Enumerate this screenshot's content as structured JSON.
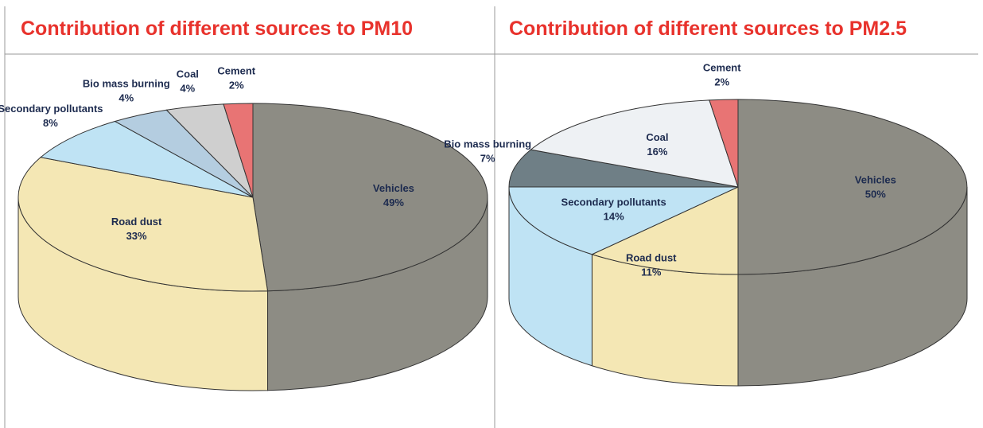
{
  "chart_data": [
    {
      "type": "pie",
      "title": "Contribution of different sources to PM10",
      "categories": [
        "Vehicles",
        "Road dust",
        "Secondary pollutants",
        "Bio mass burning",
        "Coal",
        "Cement"
      ],
      "values": [
        49,
        33,
        8,
        4,
        4,
        2
      ],
      "value_labels": [
        "49%",
        "33%",
        "8%",
        "4%",
        "4%",
        "2%"
      ],
      "colors": [
        "#8d8c84",
        "#f4e7b4",
        "#bfe3f4",
        "#b4cde0",
        "#cfcfcf",
        "#e87474"
      ]
    },
    {
      "type": "pie",
      "title": "Contribution of different sources to PM2.5",
      "categories": [
        "Vehicles",
        "Road dust",
        "Secondary pollutants",
        "Bio mass burning",
        "Coal",
        "Cement"
      ],
      "values": [
        50,
        11,
        14,
        7,
        16,
        2
      ],
      "value_labels": [
        "50%",
        "11%",
        "14%",
        "7%",
        "16%",
        "2%"
      ],
      "colors": [
        "#8d8c84",
        "#f4e7b4",
        "#bfe3f4",
        "#6f7f86",
        "#eef1f4",
        "#e87474"
      ]
    }
  ]
}
